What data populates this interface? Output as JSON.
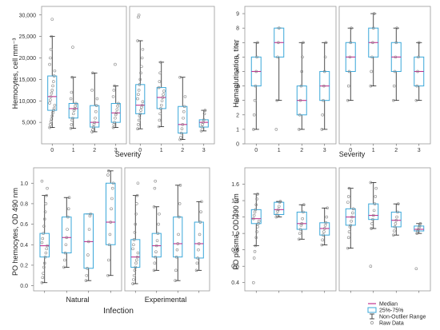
{
  "style": {
    "box_stroke": "#3aa7d9",
    "median_color": "#c0328f",
    "whisker_color": "#222222",
    "point_color": "#888888",
    "panel_border": "#999999"
  },
  "legend": {
    "median": "Median",
    "iqr": "25%-75%",
    "range": "Non-Outlier Range",
    "raw": "Raw Data"
  },
  "chart_data": [
    {
      "id": "hemocytes",
      "type": "boxplot",
      "ylabel": "Hemocytes, cell mm⁻³",
      "xlabel": "Severity",
      "ylim": [
        0,
        32000
      ],
      "yticks": [
        "5,000",
        "10,000",
        "15,000",
        "20,000",
        "25,000",
        "30,000"
      ],
      "ytick_values": [
        5000,
        10000,
        15000,
        20000,
        25000,
        30000
      ],
      "groups": [
        {
          "categories": [
            "0",
            "1",
            "2",
            "3"
          ],
          "boxes": [
            {
              "min": 3800,
              "q1": 7800,
              "median": 11000,
              "q3": 15800,
              "max": 25000,
              "points": [
                3800,
                4500,
                5200,
                5800,
                6500,
                7200,
                7800,
                8300,
                9000,
                9500,
                10200,
                11000,
                11800,
                12500,
                13500,
                14500,
                15800,
                17000,
                18500,
                20000,
                22000,
                25000,
                29000
              ]
            },
            {
              "min": 3600,
              "q1": 6000,
              "median": 8200,
              "q3": 9400,
              "max": 15500,
              "points": [
                3600,
                4500,
                5500,
                6000,
                7000,
                7800,
                8200,
                8800,
                9400,
                10500,
                12000,
                15500,
                22500
              ]
            },
            {
              "min": 2800,
              "q1": 3900,
              "median": 5000,
              "q3": 8900,
              "max": 16500,
              "points": [
                2800,
                3300,
                3900,
                4500,
                5000,
                6000,
                7500,
                8900,
                10500,
                12500,
                16500
              ]
            },
            {
              "min": 3800,
              "q1": 5000,
              "median": 7200,
              "q3": 9400,
              "max": 13500,
              "points": [
                3800,
                4500,
                5000,
                6000,
                6800,
                7200,
                8000,
                8800,
                9400,
                11000,
                12500,
                13500,
                18500
              ]
            }
          ]
        },
        {
          "categories": [
            "0",
            "1",
            "2",
            "3"
          ],
          "boxes": [
            {
              "min": 3500,
              "q1": 7000,
              "median": 9000,
              "q3": 13800,
              "max": 24000,
              "points": [
                3500,
                4500,
                5500,
                6500,
                7000,
                7800,
                8500,
                9000,
                9800,
                10500,
                11500,
                12500,
                13800,
                15000,
                16500,
                18000,
                20000,
                22000,
                24000,
                29500,
                30000
              ]
            },
            {
              "min": 4000,
              "q1": 8200,
              "median": 10800,
              "q3": 13100,
              "max": 19000,
              "points": [
                4000,
                5500,
                7000,
                8200,
                9000,
                10000,
                10800,
                11500,
                12300,
                13100,
                14500,
                16500,
                19000
              ]
            },
            {
              "min": 1000,
              "q1": 2500,
              "median": 4500,
              "q3": 8700,
              "max": 15500,
              "points": [
                1000,
                1500,
                2500,
                3500,
                4500,
                6000,
                7500,
                8700,
                11000,
                15500
              ]
            },
            {
              "min": 3000,
              "q1": 3900,
              "median": 5000,
              "q3": 5600,
              "max": 7800,
              "points": [
                3000,
                3900,
                4500,
                5000,
                5600,
                7000,
                7800
              ]
            }
          ]
        }
      ]
    },
    {
      "id": "hemagglutination",
      "type": "boxplot",
      "ylabel": "Hemaglutination, titer",
      "xlabel": "Severity",
      "ylim": [
        0,
        9.5
      ],
      "yticks": [
        "0",
        "1",
        "2",
        "3",
        "4",
        "5",
        "6",
        "7",
        "8",
        "9"
      ],
      "ytick_values": [
        0,
        1,
        2,
        3,
        4,
        5,
        6,
        7,
        8,
        9
      ],
      "groups": [
        {
          "categories": [
            "0",
            "1",
            "2",
            "3"
          ],
          "boxes": [
            {
              "min": 1,
              "q1": 4,
              "median": 5,
              "q3": 6,
              "max": 7,
              "points": [
                1,
                2,
                3,
                4,
                5,
                6,
                7
              ]
            },
            {
              "min": 3,
              "q1": 6,
              "median": 7,
              "q3": 8,
              "max": 8,
              "points": [
                1,
                3,
                6,
                7,
                8
              ]
            },
            {
              "min": 1,
              "q1": 2,
              "median": 3,
              "q3": 4,
              "max": 7,
              "points": [
                1,
                2,
                3,
                4,
                5,
                6,
                7
              ]
            },
            {
              "min": 1,
              "q1": 3,
              "median": 4,
              "q3": 5,
              "max": 7,
              "points": [
                1,
                2,
                3,
                4,
                5,
                6,
                7
              ]
            }
          ]
        },
        {
          "categories": [
            "0",
            "1",
            "2",
            "3"
          ],
          "boxes": [
            {
              "min": 3,
              "q1": 5,
              "median": 6,
              "q3": 7,
              "max": 8,
              "points": [
                3,
                4,
                5,
                6,
                7,
                8
              ]
            },
            {
              "min": 4,
              "q1": 6,
              "median": 7,
              "q3": 8,
              "max": 9,
              "points": [
                4,
                5,
                6,
                7,
                8,
                9
              ]
            },
            {
              "min": 3,
              "q1": 5,
              "median": 6,
              "q3": 7,
              "max": 8,
              "points": [
                3,
                4,
                5,
                6,
                7,
                8
              ]
            },
            {
              "min": 3,
              "q1": 4,
              "median": 5,
              "q3": 6,
              "max": 7,
              "points": [
                3,
                4,
                5,
                6,
                7
              ]
            }
          ]
        }
      ]
    },
    {
      "id": "po-hemocytes",
      "type": "boxplot",
      "ylabel": "PO hemocytes, OD 490 nm",
      "xlabel": "Infection",
      "group_labels": [
        "Natural",
        "Experimental"
      ],
      "ylim": [
        -0.05,
        1.15
      ],
      "yticks": [
        "0.0",
        "0.2",
        "0.4",
        "0.6",
        "0.8",
        "1.0"
      ],
      "ytick_values": [
        0.0,
        0.2,
        0.4,
        0.6,
        0.8,
        1.0
      ],
      "groups": [
        {
          "categories": [
            "",
            "",
            "",
            ""
          ],
          "boxes": [
            {
              "min": 0.03,
              "q1": 0.28,
              "median": 0.39,
              "q3": 0.51,
              "max": 0.88,
              "points": [
                0.03,
                0.08,
                0.12,
                0.18,
                0.22,
                0.28,
                0.32,
                0.36,
                0.39,
                0.42,
                0.46,
                0.51,
                0.58,
                0.65,
                0.72,
                0.8,
                0.88,
                0.95,
                1.02
              ]
            },
            {
              "min": 0.18,
              "q1": 0.32,
              "median": 0.47,
              "q3": 0.67,
              "max": 0.86,
              "points": [
                0.18,
                0.25,
                0.32,
                0.4,
                0.47,
                0.55,
                0.67,
                0.75,
                0.86
              ]
            },
            {
              "min": 0.05,
              "q1": 0.17,
              "median": 0.43,
              "q3": 0.7,
              "max": 0.7,
              "points": [
                0.05,
                0.1,
                0.17,
                0.3,
                0.43,
                0.55,
                0.68,
                0.7
              ]
            },
            {
              "min": 0.1,
              "q1": 0.4,
              "median": 0.62,
              "q3": 1.0,
              "max": 1.12,
              "points": [
                0.1,
                0.25,
                0.4,
                0.5,
                0.62,
                0.75,
                0.85,
                0.95,
                1.0,
                1.08,
                1.12
              ]
            }
          ]
        },
        {
          "categories": [
            "",
            "",
            "",
            ""
          ],
          "boxes": [
            {
              "min": 0.02,
              "q1": 0.18,
              "median": 0.28,
              "q3": 0.45,
              "max": 0.88,
              "points": [
                0.02,
                0.06,
                0.1,
                0.15,
                0.18,
                0.22,
                0.25,
                0.28,
                0.32,
                0.36,
                0.4,
                0.45,
                0.52,
                0.6,
                0.7,
                0.8,
                0.88,
                1.0
              ]
            },
            {
              "min": 0.15,
              "q1": 0.28,
              "median": 0.39,
              "q3": 0.51,
              "max": 0.77,
              "points": [
                0.15,
                0.22,
                0.28,
                0.33,
                0.39,
                0.44,
                0.51,
                0.6,
                0.7,
                0.77,
                0.95,
                1.02
              ]
            },
            {
              "min": 0.05,
              "q1": 0.28,
              "median": 0.41,
              "q3": 0.67,
              "max": 0.98,
              "points": [
                0.05,
                0.15,
                0.28,
                0.35,
                0.41,
                0.5,
                0.67,
                0.8,
                0.98
              ]
            },
            {
              "min": 0.15,
              "q1": 0.27,
              "median": 0.41,
              "q3": 0.62,
              "max": 0.82,
              "points": [
                0.15,
                0.22,
                0.27,
                0.35,
                0.41,
                0.5,
                0.62,
                0.72,
                0.82
              ]
            }
          ]
        }
      ]
    },
    {
      "id": "po-plasma",
      "type": "boxplot",
      "ylabel": "PO plasma, OD 490 nm",
      "xlabel": "",
      "ylim": [
        0.3,
        1.8
      ],
      "yticks": [
        "0.4",
        "0.6",
        "0.8",
        "1.0",
        "1.2",
        "1.4",
        "1.6"
      ],
      "ytick_values": [
        0.4,
        0.6,
        0.8,
        1.0,
        1.2,
        1.4,
        1.6
      ],
      "groups": [
        {
          "categories": [
            "",
            "",
            "",
            ""
          ],
          "boxes": [
            {
              "min": 0.85,
              "q1": 1.12,
              "median": 1.18,
              "q3": 1.29,
              "max": 1.48,
              "points": [
                0.4,
                0.7,
                0.78,
                0.85,
                0.95,
                1.02,
                1.08,
                1.12,
                1.15,
                1.18,
                1.22,
                1.26,
                1.29,
                1.35,
                1.42,
                1.48
              ]
            },
            {
              "min": 1.2,
              "q1": 1.23,
              "median": 1.29,
              "q3": 1.38,
              "max": 1.39,
              "points": [
                1.2,
                1.23,
                1.27,
                1.29,
                1.33,
                1.38,
                1.39
              ]
            },
            {
              "min": 0.93,
              "q1": 1.05,
              "median": 1.12,
              "q3": 1.26,
              "max": 1.35,
              "points": [
                0.93,
                1.0,
                1.05,
                1.1,
                1.12,
                1.18,
                1.26,
                1.35
              ]
            },
            {
              "min": 0.86,
              "q1": 0.98,
              "median": 1.06,
              "q3": 1.13,
              "max": 1.31,
              "points": [
                0.86,
                0.92,
                0.98,
                1.02,
                1.06,
                1.1,
                1.13,
                1.2,
                1.31
              ]
            }
          ]
        },
        {
          "categories": [
            "",
            "",
            "",
            ""
          ],
          "boxes": [
            {
              "min": 0.82,
              "q1": 1.1,
              "median": 1.2,
              "q3": 1.3,
              "max": 1.55,
              "points": [
                0.82,
                0.95,
                1.02,
                1.08,
                1.1,
                1.15,
                1.2,
                1.25,
                1.3,
                1.38,
                1.45,
                1.55
              ]
            },
            {
              "min": 1.06,
              "q1": 1.17,
              "median": 1.22,
              "q3": 1.36,
              "max": 1.62,
              "points": [
                0.6,
                1.06,
                1.12,
                1.17,
                1.22,
                1.28,
                1.36,
                1.45,
                1.55,
                1.62
              ]
            },
            {
              "min": 0.98,
              "q1": 1.08,
              "median": 1.16,
              "q3": 1.26,
              "max": 1.36,
              "points": [
                0.98,
                1.03,
                1.08,
                1.12,
                1.16,
                1.2,
                1.26,
                1.36
              ]
            },
            {
              "min": 1.0,
              "q1": 1.03,
              "median": 1.05,
              "q3": 1.09,
              "max": 1.12,
              "points": [
                0.57,
                1.0,
                1.03,
                1.05,
                1.07,
                1.09,
                1.12
              ]
            }
          ]
        }
      ]
    }
  ]
}
